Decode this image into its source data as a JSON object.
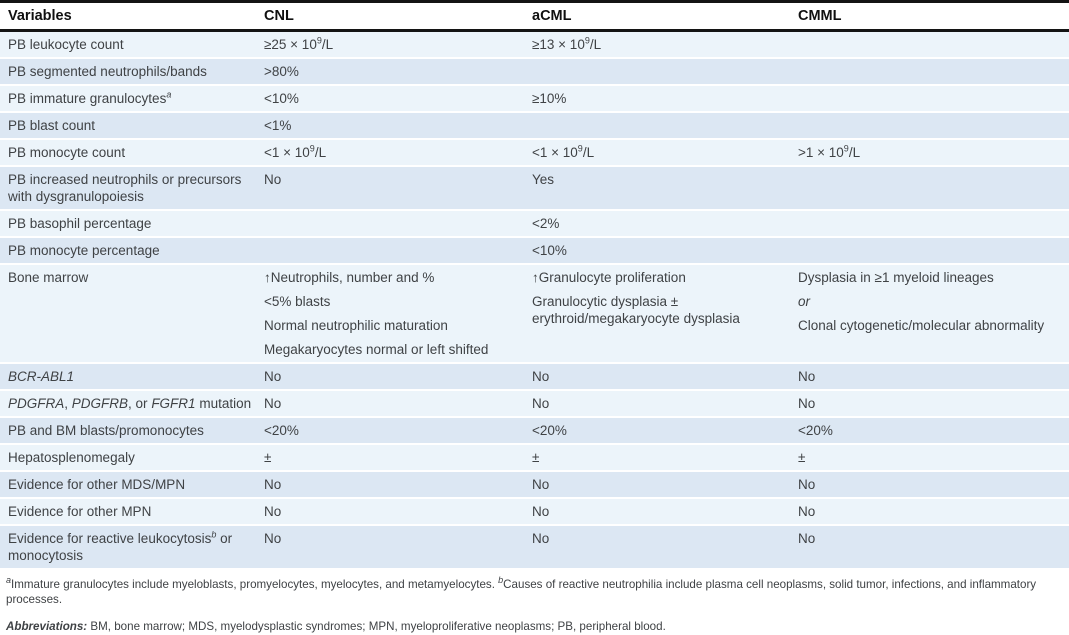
{
  "colors": {
    "row_light": "#ECF4FA",
    "row_dark": "#DCE7F3",
    "rule_black": "#141414",
    "body_text": "#3F4245"
  },
  "table": {
    "columns": [
      "Variables",
      "CNL",
      "aCML",
      "CMML"
    ],
    "rows": [
      {
        "cells": [
          [
            [
              "PB leukocyte count"
            ]
          ],
          [
            [
              {
                "t": "≥25 × 10"
              },
              {
                "t": "9",
                "sup": true
              },
              {
                "t": "/L"
              }
            ]
          ],
          [
            [
              {
                "t": "≥13 × 10"
              },
              {
                "t": "9",
                "sup": true
              },
              {
                "t": "/L"
              }
            ]
          ],
          []
        ]
      },
      {
        "cells": [
          [
            [
              "PB segmented neutrophils/bands"
            ]
          ],
          [
            [
              ">80%"
            ]
          ],
          [],
          []
        ]
      },
      {
        "cells": [
          [
            [
              {
                "t": "PB immature granulocytes"
              },
              {
                "t": "a",
                "sup": true,
                "i": true
              }
            ]
          ],
          [
            [
              "<10%"
            ]
          ],
          [
            [
              "≥10%"
            ]
          ],
          []
        ]
      },
      {
        "cells": [
          [
            [
              "PB blast count"
            ]
          ],
          [
            [
              "<1%"
            ]
          ],
          [],
          []
        ]
      },
      {
        "cells": [
          [
            [
              "PB monocyte count"
            ]
          ],
          [
            [
              {
                "t": "<1 × 10"
              },
              {
                "t": "9",
                "sup": true
              },
              {
                "t": "/L"
              }
            ]
          ],
          [
            [
              {
                "t": "<1 × 10"
              },
              {
                "t": "9",
                "sup": true
              },
              {
                "t": "/L"
              }
            ]
          ],
          [
            [
              {
                "t": ">1 × 10"
              },
              {
                "t": "9",
                "sup": true
              },
              {
                "t": "/L"
              }
            ]
          ]
        ]
      },
      {
        "cells": [
          [
            [
              "PB increased neutrophils or precursors with dysgranulopoiesis"
            ]
          ],
          [
            [
              "No"
            ]
          ],
          [
            [
              "Yes"
            ]
          ],
          []
        ]
      },
      {
        "cells": [
          [
            [
              "PB basophil percentage"
            ]
          ],
          [],
          [
            [
              "<2%"
            ]
          ],
          []
        ]
      },
      {
        "cells": [
          [
            [
              "PB monocyte percentage"
            ]
          ],
          [],
          [
            [
              "<10%"
            ]
          ],
          []
        ]
      },
      {
        "cells": [
          [
            [
              "Bone marrow"
            ]
          ],
          [
            [
              "↑Neutrophils, number and %"
            ],
            [
              "<5% blasts"
            ],
            [
              "Normal neutrophilic maturation"
            ],
            [
              "Megakaryocytes normal or left shifted"
            ]
          ],
          [
            [
              "↑Granulocyte proliferation"
            ],
            [
              "Granulocytic dysplasia ± erythroid/megakaryocyte dysplasia"
            ]
          ],
          [
            [
              "Dysplasia in ≥1 myeloid lineages"
            ],
            [
              {
                "t": "or",
                "i": true
              }
            ],
            [
              "Clonal cytogenetic/molecular abnormality"
            ]
          ]
        ]
      },
      {
        "cells": [
          [
            [
              {
                "t": "BCR-ABL1",
                "i": true
              }
            ]
          ],
          [
            [
              "No"
            ]
          ],
          [
            [
              "No"
            ]
          ],
          [
            [
              "No"
            ]
          ]
        ]
      },
      {
        "cells": [
          [
            [
              {
                "t": "PDGFRA",
                "i": true
              },
              {
                "t": ", "
              },
              {
                "t": "PDGFRB",
                "i": true
              },
              {
                "t": ", or "
              },
              {
                "t": "FGFR1",
                "i": true
              },
              {
                "t": " mutation"
              }
            ]
          ],
          [
            [
              "No"
            ]
          ],
          [
            [
              "No"
            ]
          ],
          [
            [
              "No"
            ]
          ]
        ]
      },
      {
        "cells": [
          [
            [
              "PB and BM blasts/promonocytes"
            ]
          ],
          [
            [
              "<20%"
            ]
          ],
          [
            [
              "<20%"
            ]
          ],
          [
            [
              "<20%"
            ]
          ]
        ]
      },
      {
        "cells": [
          [
            [
              "Hepatosplenomegaly"
            ]
          ],
          [
            [
              "±"
            ]
          ],
          [
            [
              "±"
            ]
          ],
          [
            [
              "±"
            ]
          ]
        ]
      },
      {
        "cells": [
          [
            [
              "Evidence for other MDS/MPN"
            ]
          ],
          [
            [
              "No"
            ]
          ],
          [
            [
              "No"
            ]
          ],
          [
            [
              "No"
            ]
          ]
        ]
      },
      {
        "cells": [
          [
            [
              "Evidence for other MPN"
            ]
          ],
          [
            [
              "No"
            ]
          ],
          [
            [
              "No"
            ]
          ],
          [
            [
              "No"
            ]
          ]
        ]
      },
      {
        "cells": [
          [
            [
              {
                "t": "Evidence for reactive leukocytosis"
              },
              {
                "t": "b",
                "sup": true,
                "i": true
              },
              {
                "t": " or monocytosis"
              }
            ]
          ],
          [
            [
              "No"
            ]
          ],
          [
            [
              "No"
            ]
          ],
          [
            [
              "No"
            ]
          ]
        ]
      }
    ]
  },
  "footnotes": {
    "note_line": [
      {
        "t": "a",
        "sup": true,
        "i": true
      },
      {
        "t": "Immature granulocytes include myeloblasts, promyelocytes, myelocytes, and metamyelocytes.  "
      },
      {
        "t": "b",
        "sup": true,
        "i": true
      },
      {
        "t": "Causes of reactive neutrophilia include plasma cell neoplasms, solid tumor, infections, and inflammatory processes."
      }
    ],
    "abbreviations_line": [
      {
        "t": "Abbreviations:",
        "b": true,
        "i": true
      },
      {
        "t": " BM, bone marrow; MDS, myelodysplastic syndromes; MPN, myeloproliferative neoplasms; PB, peripheral blood."
      }
    ]
  }
}
